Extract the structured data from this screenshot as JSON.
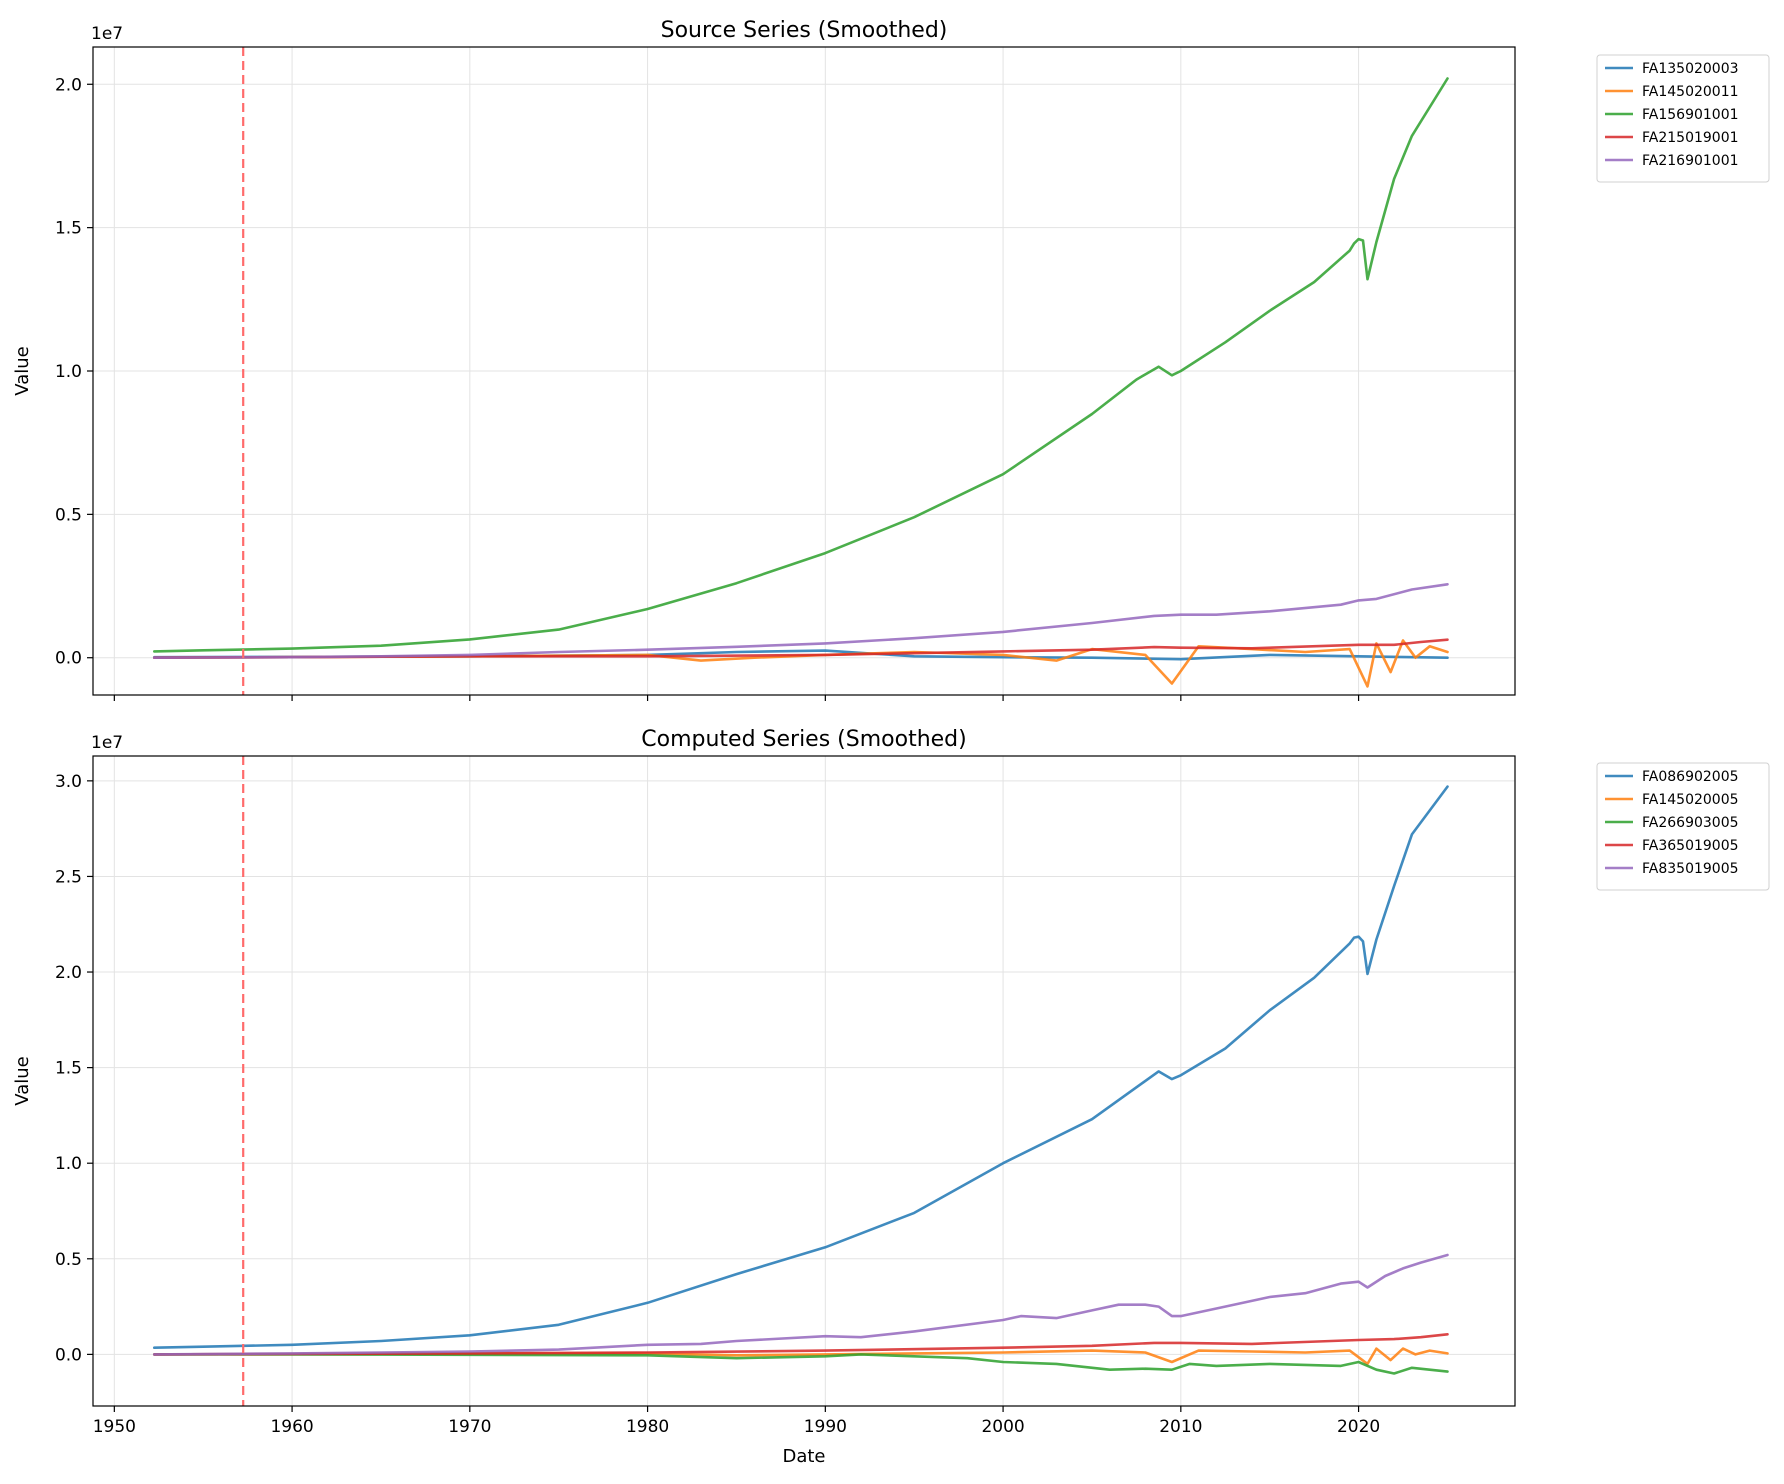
{
  "chart_data": [
    {
      "type": "line",
      "title": "Source Series (Smoothed)",
      "xlabel": "",
      "ylabel": "Value",
      "y_offset_label": "1e7",
      "xlim": [
        1948.8,
        2028.8
      ],
      "ylim": [
        -0.13,
        2.13
      ],
      "y_scale": 10000000,
      "x_ticks": [
        1950,
        1960,
        1970,
        1980,
        1990,
        2000,
        2010,
        2020
      ],
      "x_tick_labels_visible": false,
      "y_ticks": [
        0.0,
        0.5,
        1.0,
        1.5,
        2.0
      ],
      "y_tick_labels": [
        "0.0",
        "0.5",
        "1.0",
        "1.5",
        "2.0"
      ],
      "grid": true,
      "legend": "outside-right",
      "vline": {
        "x": 1957.25,
        "color": "#ff6b6b",
        "style": "dashed"
      },
      "series": [
        {
          "name": "FA135020003",
          "color": "#1f77b4",
          "x": [
            1952.25,
            1960,
            1970,
            1980,
            1985,
            1990,
            1995,
            2000,
            2005,
            2010,
            2015,
            2020,
            2025
          ],
          "y": [
            0.002,
            0.003,
            0.005,
            0.01,
            0.02,
            0.025,
            0.005,
            0.002,
            0.0,
            -0.005,
            0.01,
            0.005,
            0.0
          ]
        },
        {
          "name": "FA145020011",
          "color": "#ff7f0e",
          "x": [
            1952.25,
            1960,
            1970,
            1980,
            1983,
            1986,
            1990,
            1995,
            2000,
            2003,
            2005,
            2008,
            2009.5,
            2011,
            2014,
            2017,
            2019.5,
            2020.5,
            2021,
            2021.8,
            2022.5,
            2023.2,
            2024,
            2025
          ],
          "y": [
            0.0,
            0.002,
            0.005,
            0.01,
            -0.01,
            0.0,
            0.01,
            0.02,
            0.01,
            -0.01,
            0.03,
            0.01,
            -0.09,
            0.04,
            0.03,
            0.02,
            0.03,
            -0.1,
            0.05,
            -0.05,
            0.06,
            0.0,
            0.04,
            0.02
          ]
        },
        {
          "name": "FA156901001",
          "color": "#2ca02c",
          "x": [
            1952.25,
            1955,
            1960,
            1965,
            1970,
            1975,
            1980,
            1985,
            1990,
            1995,
            2000,
            2005,
            2007.5,
            2008.75,
            2009.5,
            2010,
            2012.5,
            2015,
            2017.5,
            2019.5,
            2019.75,
            2020.0,
            2020.25,
            2020.5,
            2021,
            2022,
            2023,
            2025
          ],
          "y": [
            0.022,
            0.026,
            0.032,
            0.042,
            0.064,
            0.098,
            0.17,
            0.26,
            0.365,
            0.49,
            0.64,
            0.85,
            0.97,
            1.015,
            0.985,
            1.0,
            1.1,
            1.21,
            1.31,
            1.42,
            1.445,
            1.46,
            1.455,
            1.32,
            1.45,
            1.67,
            1.82,
            2.02
          ]
        },
        {
          "name": "FA215019001",
          "color": "#d62728",
          "x": [
            1952.25,
            1960,
            1970,
            1980,
            1990,
            2000,
            2005,
            2008.5,
            2010,
            2014,
            2020,
            2022,
            2023.5,
            2025
          ],
          "y": [
            0.0,
            0.002,
            0.005,
            0.005,
            0.01,
            0.022,
            0.028,
            0.037,
            0.035,
            0.033,
            0.045,
            0.045,
            0.055,
            0.063
          ]
        },
        {
          "name": "FA216901001",
          "color": "#9467bd",
          "x": [
            1952.25,
            1960,
            1965,
            1970,
            1975,
            1980,
            1985,
            1990,
            1995,
            2000,
            2005,
            2008.5,
            2010,
            2012,
            2015,
            2019,
            2020,
            2021,
            2023,
            2025
          ],
          "y": [
            0.0,
            0.002,
            0.005,
            0.01,
            0.02,
            0.028,
            0.038,
            0.05,
            0.068,
            0.09,
            0.121,
            0.146,
            0.15,
            0.15,
            0.162,
            0.185,
            0.2,
            0.205,
            0.238,
            0.256
          ]
        }
      ]
    },
    {
      "type": "line",
      "title": "Computed Series (Smoothed)",
      "xlabel": "Date",
      "ylabel": "Value",
      "y_offset_label": "1e7",
      "xlim": [
        1948.8,
        2028.8
      ],
      "ylim": [
        -0.27,
        3.13
      ],
      "y_scale": 10000000,
      "x_ticks": [
        1950,
        1960,
        1970,
        1980,
        1990,
        2000,
        2010,
        2020
      ],
      "x_tick_labels": [
        "1950",
        "1960",
        "1970",
        "1980",
        "1990",
        "2000",
        "2010",
        "2020"
      ],
      "y_ticks": [
        0.0,
        0.5,
        1.0,
        1.5,
        2.0,
        2.5,
        3.0
      ],
      "y_tick_labels": [
        "0.0",
        "0.5",
        "1.0",
        "1.5",
        "2.0",
        "2.5",
        "3.0"
      ],
      "grid": true,
      "legend": "outside-right",
      "vline": {
        "x": 1957.25,
        "color": "#ff6b6b",
        "style": "dashed"
      },
      "series": [
        {
          "name": "FA086902005",
          "color": "#1f77b4",
          "x": [
            1952.25,
            1955,
            1960,
            1965,
            1970,
            1975,
            1980,
            1985,
            1990,
            1995,
            2000,
            2005,
            2008.75,
            2009.5,
            2010,
            2012.5,
            2015,
            2017.5,
            2019.5,
            2019.75,
            2020.0,
            2020.25,
            2020.5,
            2021,
            2022,
            2023,
            2025
          ],
          "y": [
            0.035,
            0.04,
            0.05,
            0.07,
            0.1,
            0.155,
            0.27,
            0.42,
            0.56,
            0.74,
            1.0,
            1.23,
            1.48,
            1.44,
            1.46,
            1.6,
            1.8,
            1.97,
            2.15,
            2.18,
            2.185,
            2.16,
            1.99,
            2.17,
            2.45,
            2.72,
            2.97
          ]
        },
        {
          "name": "FA145020005",
          "color": "#ff7f0e",
          "x": [
            1952.25,
            1960,
            1970,
            1980,
            1985,
            1990,
            1995,
            2000,
            2005,
            2008,
            2009.5,
            2011,
            2014,
            2017,
            2019.5,
            2020.5,
            2021,
            2021.8,
            2022.5,
            2023.2,
            2024,
            2025
          ],
          "y": [
            0.0,
            0.002,
            0.004,
            0.005,
            -0.005,
            0.0,
            0.005,
            0.01,
            0.02,
            0.01,
            -0.04,
            0.02,
            0.015,
            0.01,
            0.02,
            -0.05,
            0.03,
            -0.03,
            0.03,
            0.0,
            0.02,
            0.005
          ]
        },
        {
          "name": "FA266903005",
          "color": "#2ca02c",
          "x": [
            1952.25,
            1960,
            1970,
            1980,
            1985,
            1990,
            1992,
            1995,
            1998,
            2000,
            2003,
            2006,
            2008,
            2009.5,
            2010.5,
            2012,
            2015,
            2019,
            2020,
            2021,
            2022,
            2023,
            2025
          ],
          "y": [
            0.0,
            0.0,
            -0.002,
            -0.005,
            -0.02,
            -0.01,
            0.0,
            -0.01,
            -0.02,
            -0.04,
            -0.05,
            -0.08,
            -0.075,
            -0.08,
            -0.05,
            -0.06,
            -0.05,
            -0.06,
            -0.04,
            -0.08,
            -0.1,
            -0.07,
            -0.09
          ]
        },
        {
          "name": "FA365019005",
          "color": "#d62728",
          "x": [
            1952.25,
            1960,
            1970,
            1980,
            1990,
            2000,
            2005,
            2008.5,
            2010,
            2014,
            2020,
            2022,
            2023.5,
            2025
          ],
          "y": [
            0.0,
            0.002,
            0.005,
            0.01,
            0.02,
            0.035,
            0.045,
            0.06,
            0.06,
            0.055,
            0.075,
            0.08,
            0.09,
            0.105
          ]
        },
        {
          "name": "FA835019005",
          "color": "#9467bd",
          "x": [
            1952.25,
            1960,
            1965,
            1970,
            1975,
            1980,
            1983,
            1985,
            1990,
            1992,
            1995,
            2000,
            2001,
            2003,
            2005,
            2006.5,
            2008,
            2008.75,
            2009.5,
            2010,
            2012,
            2015,
            2017,
            2019,
            2020,
            2020.5,
            2021.5,
            2022.5,
            2023.5,
            2025
          ],
          "y": [
            0.0,
            0.005,
            0.01,
            0.015,
            0.025,
            0.05,
            0.055,
            0.07,
            0.095,
            0.09,
            0.12,
            0.18,
            0.2,
            0.19,
            0.23,
            0.26,
            0.26,
            0.25,
            0.2,
            0.2,
            0.24,
            0.3,
            0.32,
            0.37,
            0.38,
            0.35,
            0.41,
            0.45,
            0.48,
            0.52
          ]
        }
      ]
    }
  ]
}
